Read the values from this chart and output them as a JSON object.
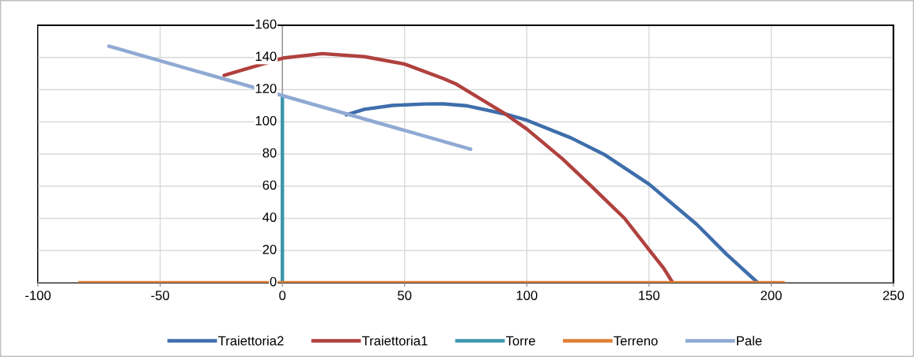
{
  "chart_data": {
    "type": "line",
    "xlim": [
      -100,
      250
    ],
    "xticks": [
      -100,
      -50,
      0,
      50,
      100,
      150,
      200,
      250
    ],
    "ylim": [
      0,
      160
    ],
    "yticks": [
      0,
      20,
      40,
      60,
      80,
      100,
      120,
      140,
      160
    ],
    "grid": true,
    "legend": "bottom",
    "marker": "none",
    "line_style": "solid",
    "series": [
      {
        "name": "Traiettoria2",
        "color": "#3e6eab",
        "x": [
          26.2,
          33.6,
          45,
          58.4,
          65.7,
          75.7,
          91.3,
          100,
          118.1,
          131.6,
          150,
          169.5,
          181.7,
          194.5
        ],
        "values": [
          104.3,
          107.8,
          110.2,
          111.1,
          111.2,
          109.9,
          104.8,
          101,
          90,
          79.8,
          61.3,
          36.3,
          17.7,
          0
        ]
      },
      {
        "name": "Traiettoria1",
        "color": "#b0413e",
        "x": [
          -23.8,
          -10,
          0.2,
          16.3,
          33.6,
          50,
          65.7,
          70.8,
          91.3,
          100,
          114.6,
          126.8,
          140,
          150,
          156,
          159.7
        ],
        "values": [
          128.9,
          135,
          139.6,
          142.4,
          140.5,
          135.9,
          127,
          123.7,
          104.8,
          95.5,
          77,
          59.4,
          40,
          20.6,
          9,
          0
        ]
      },
      {
        "name": "Torre",
        "color": "#3a96ad",
        "x": [
          0,
          0
        ],
        "values": [
          0,
          115
        ]
      },
      {
        "name": "Terreno",
        "color": "#e07f35",
        "x": [
          -83,
          205
        ],
        "values": [
          0,
          0
        ]
      },
      {
        "name": "Pale",
        "color": "#8fa9d3",
        "x": [
          -71,
          77
        ],
        "values": [
          147,
          83
        ]
      }
    ]
  }
}
